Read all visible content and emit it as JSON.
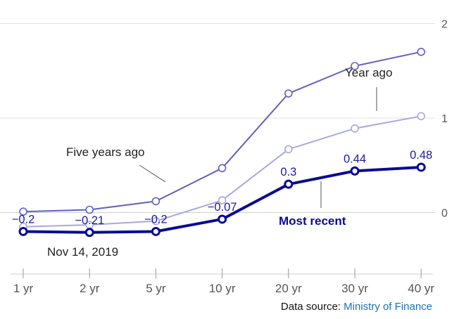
{
  "chart_data": {
    "type": "line",
    "categories": [
      "1 yr",
      "2 yr",
      "5 yr",
      "10 yr",
      "20 yr",
      "30 yr",
      "40 yr"
    ],
    "ylim": [
      -0.65,
      2.1
    ],
    "yticks": [
      {
        "value": 2,
        "label": "2"
      },
      {
        "value": 1,
        "label": "1"
      },
      {
        "value": 0,
        "label": "0"
      }
    ],
    "series": [
      {
        "name": "Five years ago",
        "color": "#6060c0",
        "values": [
          0.01,
          0.03,
          0.12,
          0.47,
          1.26,
          1.55,
          1.7
        ]
      },
      {
        "name": "Year ago",
        "color": "#a8a8e0",
        "values": [
          -0.15,
          -0.13,
          -0.09,
          0.13,
          0.67,
          0.89,
          1.02
        ]
      },
      {
        "name": "Most recent",
        "color": "#0a0a96",
        "values": [
          -0.2,
          -0.21,
          -0.2,
          -0.07,
          0.3,
          0.44,
          0.48
        ],
        "data_labels": [
          "−0.2",
          "−0.21",
          "−0.2",
          "−0.07",
          "0.3",
          "0.44",
          "0.48"
        ]
      }
    ],
    "annotations": {
      "five_years_ago": "Five years ago",
      "year_ago": "Year ago",
      "most_recent": "Most recent",
      "date": "Nov 14, 2019"
    },
    "grid": true
  },
  "source": {
    "prefix": "Data source: ",
    "link_text": "Ministry of Finance"
  }
}
